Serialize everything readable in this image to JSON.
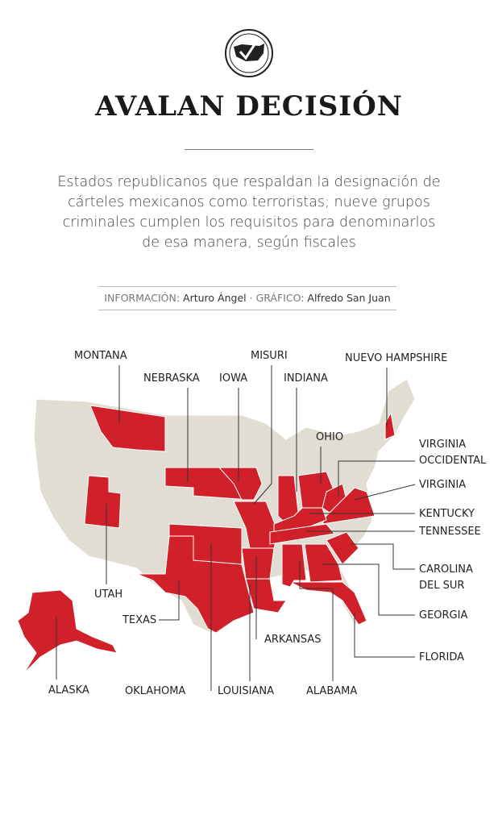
{
  "header": {
    "title": "AVALAN DECISIÓN",
    "subtitle": [
      "Estados republicanos que respaldan la designación de",
      "cárteles mexicanos como terroristas; nueve grupos",
      "criminales cumplen los requisitos para denominarlos",
      "de esa manera, según fiscales"
    ],
    "credits": [
      {
        "label": "INFORMACIÓN:",
        "name": "Arturo Ángel"
      },
      {
        "label": "GRÁFICO:",
        "name": "Alfredo San Juan"
      }
    ],
    "separator": "·"
  },
  "states": [
    {
      "lines": [
        "MONTANA"
      ]
    },
    {
      "lines": [
        "NEBRASKA"
      ]
    },
    {
      "lines": [
        "IOWA"
      ]
    },
    {
      "lines": [
        "MISURI"
      ]
    },
    {
      "lines": [
        "INDIANA"
      ]
    },
    {
      "lines": [
        "OHIO"
      ]
    },
    {
      "lines": [
        "NUEVO HAMPSHIRE"
      ]
    },
    {
      "lines": [
        "VIRGINIA",
        "OCCIDENTAL"
      ]
    },
    {
      "lines": [
        "VIRGINIA"
      ]
    },
    {
      "lines": [
        "KENTUCKY"
      ]
    },
    {
      "lines": [
        "TENNESSEE"
      ]
    },
    {
      "lines": [
        "CAROLINA",
        "DEL SUR"
      ]
    },
    {
      "lines": [
        "GEORGIA"
      ]
    },
    {
      "lines": [
        "FLORIDA"
      ]
    },
    {
      "lines": [
        "ALABAMA"
      ]
    },
    {
      "lines": [
        "LOUISIANA"
      ]
    },
    {
      "lines": [
        "OKLAHOMA"
      ]
    },
    {
      "lines": [
        "ARKANSAS"
      ]
    },
    {
      "lines": [
        "TEXAS"
      ]
    },
    {
      "lines": [
        "UTAH"
      ]
    },
    {
      "lines": [
        "ALASKA"
      ]
    }
  ]
}
